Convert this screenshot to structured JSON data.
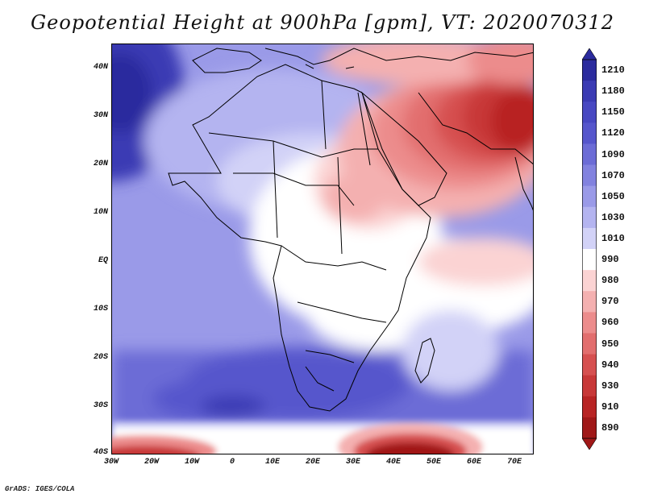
{
  "title": "Geopotential Height at 900hPa [gpm], VT: 2020070312",
  "y_axis_labels": [
    "40N",
    "30N",
    "20N",
    "10N",
    "EQ",
    "10S",
    "20S",
    "30S",
    "40S"
  ],
  "x_axis_labels": [
    "30W",
    "20W",
    "10W",
    "0",
    "10E",
    "20E",
    "30E",
    "40E",
    "50E",
    "60E",
    "70E"
  ],
  "colorbar": {
    "labels": [
      "1210",
      "1180",
      "1150",
      "1120",
      "1090",
      "1070",
      "1050",
      "1030",
      "1010",
      "990",
      "980",
      "970",
      "960",
      "950",
      "940",
      "930",
      "910",
      "890"
    ],
    "colors": [
      "#2b2b9e",
      "#3b3bb4",
      "#4848c2",
      "#5656cc",
      "#6c6cd6",
      "#8282df",
      "#9a9ae8",
      "#b4b4f0",
      "#d2d2f7",
      "#ffffff",
      "#fbd3d3",
      "#f4b0b0",
      "#ec8c8c",
      "#e26e6e",
      "#d65050",
      "#c83838",
      "#b82424",
      "#a01818"
    ]
  },
  "credit": "GrADS: IGES/COLA"
}
